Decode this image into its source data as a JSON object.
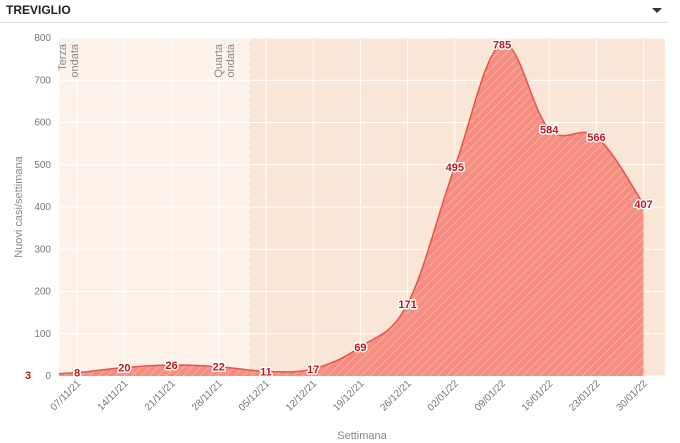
{
  "header": {
    "title": "TREVIGLIO"
  },
  "colors": {
    "area_fill": "#f58d80",
    "area_stroke": "#e8534a",
    "label_text": "#c0171d",
    "band_light": "#fcf2ea",
    "band_dark": "#f9e6d6",
    "axis_text": "#777777"
  },
  "icons": {
    "dropdown": "caret-down-icon"
  },
  "chart_data": {
    "type": "area",
    "title": "",
    "xlabel": "Settimana",
    "ylabel": "Nuovi casi/settimana",
    "ylim": [
      0,
      800
    ],
    "yticks": [
      0,
      100,
      200,
      300,
      400,
      500,
      600,
      700,
      800
    ],
    "grid": true,
    "x_tick_labels": [
      "07/11/21",
      "14/11/21",
      "21/11/21",
      "28/11/21",
      "05/12/21",
      "12/12/21",
      "19/12/21",
      "26/12/21",
      "02/01/22",
      "09/01/22",
      "16/01/22",
      "23/01/22",
      "30/01/22"
    ],
    "x": [
      "31/10/21",
      "07/11/21",
      "14/11/21",
      "21/11/21",
      "28/11/21",
      "05/12/21",
      "12/12/21",
      "19/12/21",
      "26/12/21",
      "02/01/22",
      "09/01/22",
      "16/01/22",
      "23/01/22",
      "30/01/22"
    ],
    "values": [
      3,
      8,
      20,
      26,
      22,
      11,
      17,
      69,
      171,
      495,
      785,
      584,
      566,
      407
    ],
    "data_labels": [
      "3",
      "8",
      "20",
      "26",
      "22",
      "11",
      "17",
      "69",
      "171",
      "495",
      "785",
      "584",
      "566",
      "407"
    ],
    "bands": [
      {
        "label_line1": "Terza",
        "label_line2": "ondata",
        "from": "31/10/21",
        "to": "05/12/21"
      },
      {
        "label_line1": "Quarta",
        "label_line2": "ondata",
        "from": "05/12/21",
        "to": "30/01/22"
      }
    ]
  }
}
